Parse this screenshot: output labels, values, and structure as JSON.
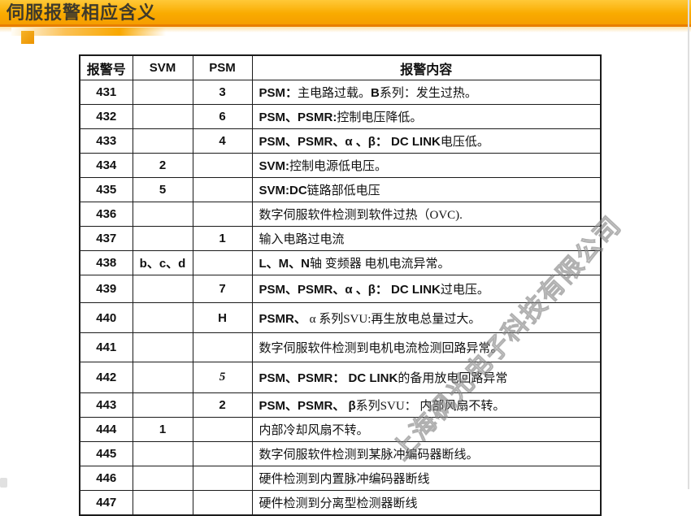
{
  "page": {
    "title": "伺服报警相应含义"
  },
  "watermark": {
    "text": "上海枫光电子科技有限公司"
  },
  "colors": {
    "banner_top": "#ffc938",
    "banner_main": "#f9ab00",
    "banner_edge": "#e87e00",
    "accent_square": "#ec9300",
    "table_border": "#1b1b1b",
    "watermark_gray": "#7d7d7d"
  },
  "table": {
    "headers": [
      "报警号",
      "SVM",
      "PSM",
      "报警内容"
    ],
    "rows": [
      {
        "no": "431",
        "svm": "",
        "psm": "3",
        "content": [
          {
            "t": "PSM：",
            "b": true
          },
          {
            "t": "主电路过载。",
            "b": false
          },
          {
            "t": "B",
            "b": true
          },
          {
            "t": "系列：发生过热。",
            "b": false
          }
        ]
      },
      {
        "no": "432",
        "svm": "",
        "psm": "6",
        "content": [
          {
            "t": "PSM、PSMR:",
            "b": true
          },
          {
            "t": "控制电压降低。",
            "b": false
          }
        ]
      },
      {
        "no": "433",
        "svm": "",
        "psm": "4",
        "content": [
          {
            "t": "PSM、PSMR、α 、β： DC LINK",
            "b": true
          },
          {
            "t": "电压低。",
            "b": false
          }
        ]
      },
      {
        "no": "434",
        "svm": "2",
        "psm": "",
        "content": [
          {
            "t": "SVM:",
            "b": true
          },
          {
            "t": "控制电源低电压。",
            "b": false
          }
        ]
      },
      {
        "no": "435",
        "svm": "5",
        "psm": "",
        "content": [
          {
            "t": "SVM:DC",
            "b": true
          },
          {
            "t": "链路部低电压",
            "b": false
          }
        ]
      },
      {
        "no": "436",
        "svm": "",
        "psm": "",
        "content": [
          {
            "t": "数字伺服软件检测到软件过热（OVC).",
            "b": false
          }
        ]
      },
      {
        "no": "437",
        "svm": "",
        "psm": "1",
        "content": [
          {
            "t": "输入电路过电流",
            "b": false
          }
        ]
      },
      {
        "no": "438",
        "svm": "b、c、d",
        "psm": "",
        "content": [
          {
            "t": "L、M、N",
            "b": true
          },
          {
            "t": "轴 变频器 电机电流异常。",
            "b": false
          }
        ]
      },
      {
        "no": "439",
        "svm": "",
        "psm": "7",
        "content": [
          {
            "t": "PSM、PSMR、α 、β： DC LINK",
            "b": true
          },
          {
            "t": "过电压。",
            "b": false
          }
        ]
      },
      {
        "no": "440",
        "svm": "",
        "psm": "H",
        "content": [
          {
            "t": "PSMR、",
            "b": true
          },
          {
            "t": "  α 系列SVU:再生放电总量过大。",
            "b": false
          }
        ]
      },
      {
        "no": "441",
        "svm": "",
        "psm": "",
        "content": [
          {
            "t": "数字伺服软件检测到电机电流检测回路异常。",
            "b": false
          }
        ]
      },
      {
        "no": "442",
        "svm": "",
        "psm": "5",
        "psmItalic": true,
        "content": [
          {
            "t": "PSM、PSMR：  DC LINK",
            "b": true
          },
          {
            "t": "的备用放电回路异常",
            "b": false
          }
        ]
      },
      {
        "no": "443",
        "svm": "",
        "psm": "2",
        "content": [
          {
            "t": "PSM、PSMR、 β",
            "b": true
          },
          {
            "t": "系列SVU： 内部风扇不转。",
            "b": false
          }
        ]
      },
      {
        "no": "444",
        "svm": "1",
        "psm": "",
        "content": [
          {
            "t": "内部冷却风扇不转。",
            "b": false
          }
        ]
      },
      {
        "no": "445",
        "svm": "",
        "psm": "",
        "content": [
          {
            "t": "数字伺服软件检测到某脉冲编码器断线。",
            "b": false
          }
        ]
      },
      {
        "no": "446",
        "svm": "",
        "psm": "",
        "content": [
          {
            "t": "硬件检测到内置脉冲编码器断线",
            "b": false
          }
        ]
      },
      {
        "no": "447",
        "svm": "",
        "psm": "",
        "content": [
          {
            "t": "硬件检测到分离型检测器断线",
            "b": false
          }
        ]
      }
    ]
  }
}
